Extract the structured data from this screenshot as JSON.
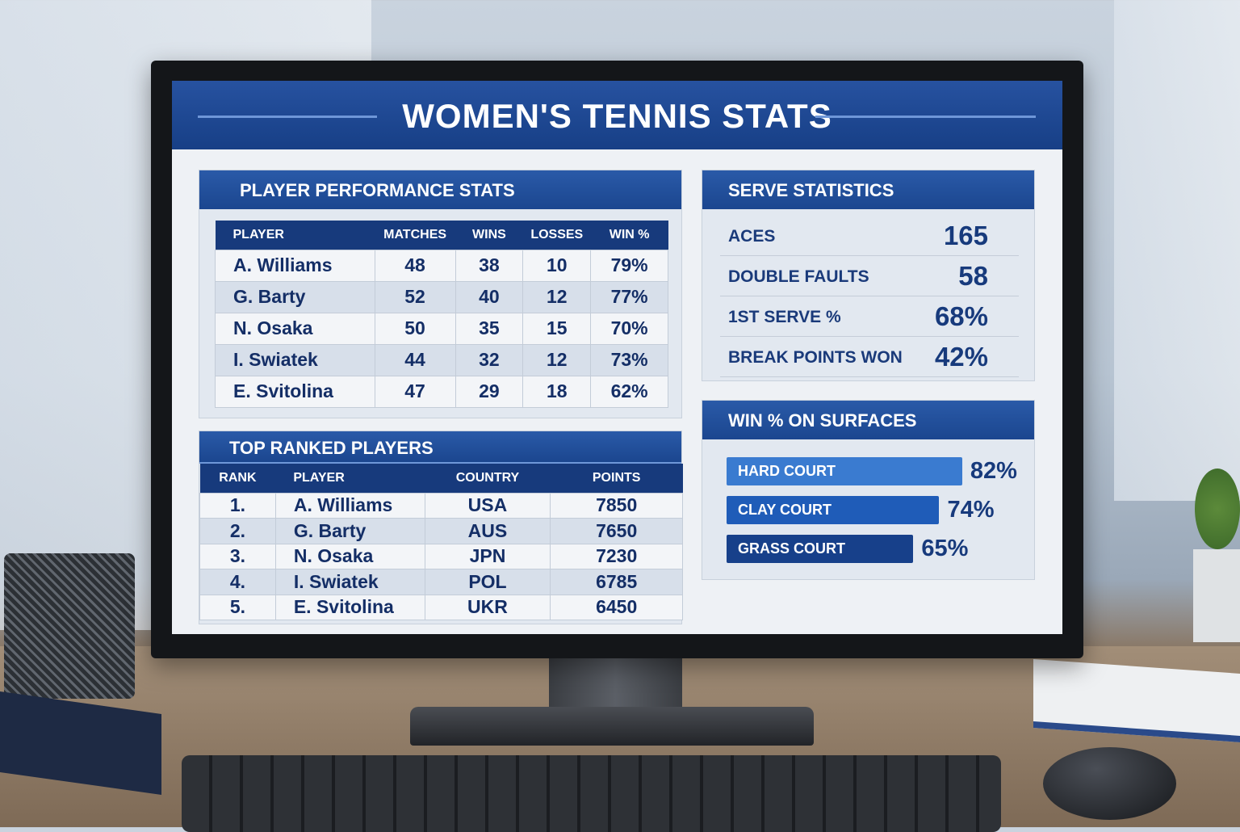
{
  "title": "WOMEN'S TENNIS STATS",
  "performance": {
    "title": "PLAYER PERFORMANCE STATS",
    "columns": [
      "PLAYER",
      "MATCHES",
      "WINS",
      "LOSSES",
      "WIN %"
    ],
    "rows": [
      [
        "A. Williams",
        "48",
        "38",
        "10",
        "79%"
      ],
      [
        "G. Barty",
        "52",
        "40",
        "12",
        "77%"
      ],
      [
        "N. Osaka",
        "50",
        "35",
        "15",
        "70%"
      ],
      [
        "I. Swiatek",
        "44",
        "32",
        "12",
        "73%"
      ],
      [
        "E. Svitolina",
        "47",
        "29",
        "18",
        "62%"
      ]
    ]
  },
  "ranked": {
    "title": "TOP RANKED PLAYERS",
    "columns": [
      "RANK",
      "PLAYER",
      "COUNTRY",
      "POINTS"
    ],
    "rows": [
      [
        "1.",
        "A. Williams",
        "USA",
        "7850"
      ],
      [
        "2.",
        "G. Barty",
        "AUS",
        "7650"
      ],
      [
        "3.",
        "N. Osaka",
        "JPN",
        "7230"
      ],
      [
        "4.",
        "I. Swiatek",
        "POL",
        "6785"
      ],
      [
        "5.",
        "E. Svitolina",
        "UKR",
        "6450"
      ]
    ]
  },
  "serve": {
    "title": "SERVE STATISTICS",
    "items": [
      {
        "label": "ACES",
        "value": "165"
      },
      {
        "label": "DOUBLE FAULTS",
        "value": "58"
      },
      {
        "label": "1ST SERVE %",
        "value": "68%"
      },
      {
        "label": "BREAK POINTS WON",
        "value": "42%"
      }
    ]
  },
  "surfaces": {
    "title": "WIN % ON SURFACES",
    "items": [
      {
        "label": "HARD COURT",
        "value": "82%",
        "percent": 82,
        "color": "#3a7bd0"
      },
      {
        "label": "CLAY COURT",
        "value": "74%",
        "percent": 74,
        "color": "#1f5cb8"
      },
      {
        "label": "GRASS COURT",
        "value": "65%",
        "percent": 65,
        "color": "#17408a"
      }
    ]
  }
}
